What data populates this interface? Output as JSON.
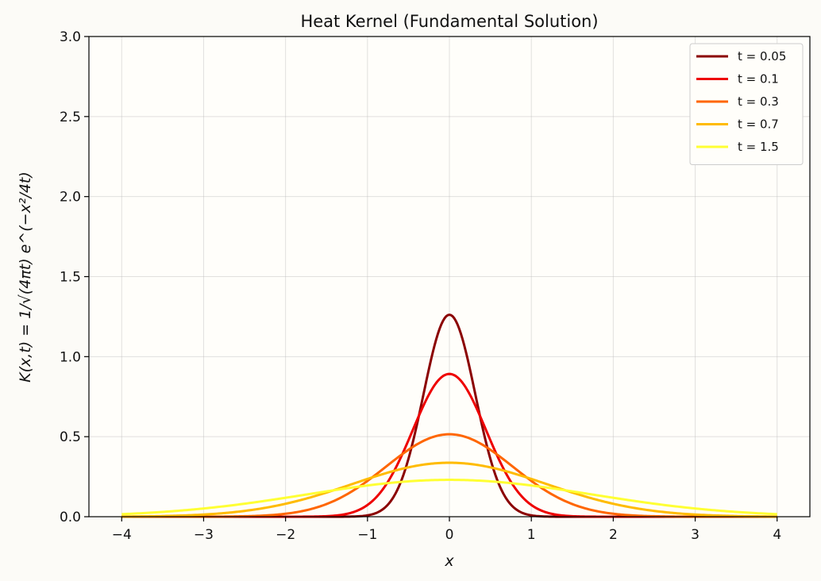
{
  "chart_data": {
    "type": "line",
    "title": "Heat Kernel (Fundamental Solution)",
    "xlabel": "x",
    "ylabel": "K(x,t) = 1/√(4πt) e^(−x²/4t)",
    "xlim": [
      -4.4,
      4.4
    ],
    "ylim": [
      0,
      3.0
    ],
    "xticks": [
      -4,
      -3,
      -2,
      -1,
      0,
      1,
      2,
      3,
      4
    ],
    "xtick_labels": [
      "−4",
      "−3",
      "−2",
      "−1",
      "0",
      "1",
      "2",
      "3",
      "4"
    ],
    "yticks": [
      0,
      0.5,
      1.0,
      1.5,
      2.0,
      2.5,
      3.0
    ],
    "ytick_labels": [
      "0.0",
      "0.5",
      "1.0",
      "1.5",
      "2.0",
      "2.5",
      "3.0"
    ],
    "x_range_plotted": [
      -4,
      4
    ],
    "grid": true,
    "legend_position": "top-right",
    "series": [
      {
        "name": "t = 0.05",
        "t": 0.05,
        "peak": 1.26,
        "color": "#8b0000"
      },
      {
        "name": "t = 0.1",
        "t": 0.1,
        "peak": 0.89,
        "color": "#ee0000"
      },
      {
        "name": "t = 0.3",
        "t": 0.3,
        "peak": 0.51,
        "color": "#ff6600"
      },
      {
        "name": "t = 0.7",
        "t": 0.7,
        "peak": 0.34,
        "color": "#ffbb00"
      },
      {
        "name": "t = 1.5",
        "t": 1.5,
        "peak": 0.23,
        "color": "#ffff33"
      }
    ]
  },
  "colors": {
    "background": "#fcfbf7",
    "plot_background": "#fffefa",
    "axes": "#000000"
  }
}
